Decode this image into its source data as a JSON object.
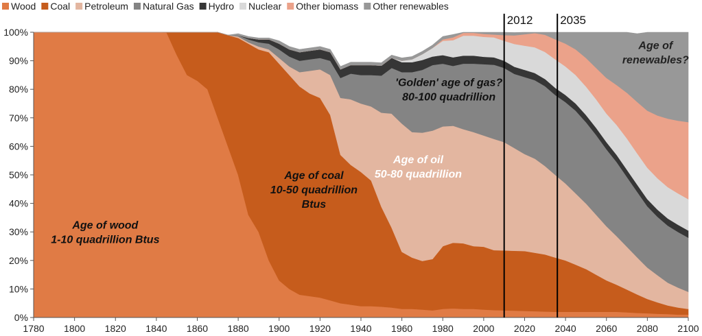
{
  "chart_data": {
    "type": "area",
    "stacked": true,
    "normalized": true,
    "title": "",
    "xlabel": "",
    "ylabel": "",
    "xlim": [
      1780,
      2100
    ],
    "ylim": [
      0,
      100
    ],
    "x_ticks": [
      1780,
      1800,
      1820,
      1840,
      1860,
      1880,
      1900,
      1920,
      1940,
      1960,
      1980,
      2000,
      2020,
      2040,
      2060,
      2080,
      2100
    ],
    "y_ticks": [
      0,
      10,
      20,
      30,
      40,
      50,
      60,
      70,
      80,
      90,
      100
    ],
    "y_tick_suffix": "%",
    "grid": false,
    "legend_position": "top",
    "x": [
      1780,
      1840,
      1845,
      1850,
      1855,
      1860,
      1865,
      1870,
      1875,
      1880,
      1885,
      1890,
      1895,
      1900,
      1905,
      1910,
      1915,
      1920,
      1925,
      1930,
      1935,
      1940,
      1945,
      1950,
      1955,
      1960,
      1965,
      1970,
      1975,
      1980,
      1985,
      1990,
      1995,
      2000,
      2005,
      2010,
      2015,
      2020,
      2025,
      2030,
      2035,
      2040,
      2045,
      2050,
      2055,
      2060,
      2065,
      2070,
      2075,
      2080,
      2085,
      2090,
      2095,
      2100
    ],
    "series": [
      {
        "name": "Wood",
        "color": "#e07b45",
        "values": [
          100,
          100,
          99.9,
          92,
          85,
          83,
          80,
          70,
          60,
          50,
          36,
          30,
          20,
          13,
          10,
          8,
          7.5,
          7,
          6,
          5,
          4.5,
          4,
          4,
          3.8,
          3.5,
          3,
          3,
          2.8,
          2.5,
          3,
          3.2,
          3,
          3,
          2.8,
          2.6,
          2.5,
          2.4,
          2.3,
          2.2,
          2.1,
          2,
          2,
          2,
          2,
          2,
          2,
          2,
          1.8,
          1.6,
          1.5,
          1.3,
          1.2,
          1,
          1
        ]
      },
      {
        "name": "Coal",
        "color": "#c65c1c",
        "values": [
          0,
          0,
          0.1,
          8,
          15,
          17,
          20,
          30,
          39,
          48,
          60,
          64,
          73,
          76,
          75,
          73,
          71,
          70,
          65,
          52,
          49,
          47,
          44,
          35,
          28,
          20,
          18,
          17,
          18,
          22,
          23,
          23,
          22,
          22,
          21,
          21,
          21,
          21,
          20.5,
          20,
          19,
          18,
          16.5,
          15,
          13,
          11,
          9.5,
          8,
          6.5,
          5,
          4,
          3,
          2.5,
          2
        ]
      },
      {
        "name": "Petroleum",
        "color": "#e3b6a0",
        "values": [
          0,
          0,
          0,
          0,
          0,
          0,
          0,
          0,
          0,
          0.5,
          0.5,
          1,
          1,
          2,
          3,
          5,
          8,
          10,
          14,
          20,
          23,
          24,
          26,
          33,
          40,
          45,
          44,
          45,
          45,
          42,
          41,
          40,
          40,
          39,
          39,
          38,
          36,
          34,
          33,
          31,
          29,
          27,
          25,
          23,
          21,
          19,
          17,
          15,
          13,
          11,
          9.5,
          8,
          7,
          6
        ]
      },
      {
        "name": "Natural Gas",
        "color": "#848484",
        "values": [
          0,
          0,
          0,
          0,
          0,
          0,
          0,
          0,
          0,
          0.5,
          1,
          1.5,
          2,
          3,
          3.5,
          4,
          4,
          4,
          5,
          7,
          9,
          10,
          11,
          13,
          16,
          18,
          21,
          22,
          23,
          22,
          21,
          23,
          24,
          25,
          26,
          26,
          26,
          27,
          27.5,
          28,
          28,
          28.5,
          29,
          28.5,
          28,
          27,
          26,
          24.5,
          23,
          21.5,
          20.5,
          20,
          19.5,
          19
        ]
      },
      {
        "name": "Hydro",
        "color": "#363636",
        "values": [
          0,
          0,
          0,
          0,
          0,
          0,
          0,
          0,
          0,
          0,
          0.5,
          1,
          1.5,
          2,
          2.5,
          3,
          3,
          3,
          3,
          3,
          3,
          3.5,
          3.5,
          3.5,
          3.5,
          3.5,
          3.5,
          3.5,
          3,
          3,
          3,
          2.8,
          2.8,
          2.6,
          2.6,
          2.5,
          2.5,
          2.5,
          2.5,
          2.5,
          2.5,
          2.5,
          2.5,
          2.5,
          2.5,
          2.5,
          2.5,
          2.5,
          2.5,
          2.5,
          2.5,
          2.5,
          2.5,
          2.5
        ]
      },
      {
        "name": "Nuclear",
        "color": "#d9d9d9",
        "values": [
          0,
          0,
          0,
          0,
          0,
          0,
          0,
          0,
          0,
          0,
          0,
          0,
          0,
          0,
          0,
          0,
          0,
          0,
          0,
          0,
          0,
          0,
          0,
          0,
          0,
          0.5,
          1,
          2,
          3,
          5,
          6,
          7,
          7,
          7,
          7,
          7,
          8,
          8.5,
          9,
          9.5,
          10,
          10,
          10,
          10,
          10,
          10,
          10.5,
          11,
          11,
          11,
          11,
          11,
          11,
          11
        ]
      },
      {
        "name": "Other biomass",
        "color": "#eba28a",
        "values": [
          0,
          0,
          0,
          0,
          0,
          0,
          0,
          0,
          0,
          0,
          0,
          0,
          0,
          0,
          0,
          0,
          0,
          0,
          0,
          0,
          0,
          0,
          0,
          0,
          0,
          0,
          0,
          0,
          0,
          0.5,
          1,
          1,
          1,
          1,
          1,
          2,
          3,
          4,
          5,
          6,
          7,
          8,
          9,
          10,
          11,
          12.5,
          14,
          16,
          18,
          20,
          22,
          24,
          25.5,
          27
        ]
      },
      {
        "name": "Other renewables",
        "color": "#989898",
        "values": [
          0,
          0,
          0,
          0,
          0,
          0,
          0,
          0,
          0,
          0.5,
          0.5,
          0.5,
          0.5,
          1,
          1,
          1,
          1,
          1,
          1,
          1,
          1,
          1,
          1,
          1,
          1,
          1,
          1,
          1,
          1,
          1,
          1,
          1,
          1,
          1,
          1,
          1,
          1,
          1,
          2,
          3,
          4,
          5,
          6,
          9,
          12.5,
          16,
          18.5,
          21.2,
          23.9,
          27.5,
          29.2,
          30.3,
          31,
          32
        ]
      }
    ],
    "markers": [
      {
        "x": 2010,
        "label": "2012"
      },
      {
        "x": 2036,
        "label": "2035"
      }
    ],
    "annotations": [
      {
        "id": "wood",
        "lines": [
          "Age of wood",
          "1-10 quadrillion Btus"
        ],
        "x": 1815,
        "y": 30,
        "color": "#111111"
      },
      {
        "id": "coal",
        "lines": [
          "Age of coal",
          "10-50 quadrillion",
          "Btus"
        ],
        "x": 1917,
        "y": 45,
        "color": "#111111"
      },
      {
        "id": "oil",
        "lines": [
          "Age of oil",
          "50-80 quadrillion"
        ],
        "x": 1968,
        "y": 53,
        "color": "#ffffff"
      },
      {
        "id": "gas",
        "lines": [
          "'Golden' age of gas?",
          "80-100 quadrillion"
        ],
        "x": 1983,
        "y": 80,
        "color": "#111111"
      },
      {
        "id": "renew",
        "lines": [
          "Age of",
          "renewables?"
        ],
        "x": 2084,
        "y": 93,
        "color": "#222222"
      }
    ]
  }
}
